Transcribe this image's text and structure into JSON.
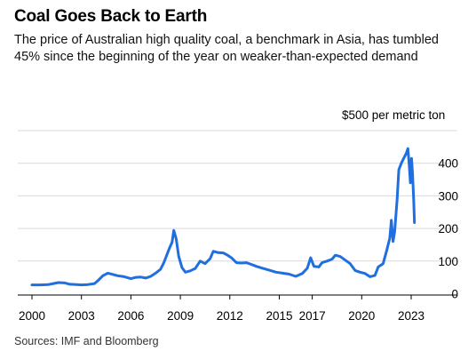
{
  "header": {
    "title": "Coal Goes Back to Earth",
    "subtitle": "The price of Australian high quality coal, a benchmark in Asia, has tumbled 45% since the beginning of the year on weaker-than-expected demand"
  },
  "footer": {
    "source": "Sources: IMF and Bloomberg"
  },
  "chart_data": {
    "type": "line",
    "title": "Coal Goes Back to Earth",
    "y_unit_label": "$500 per metric ton",
    "xlabel": "",
    "ylabel": "",
    "xlim": [
      2000,
      2024.5
    ],
    "ylim": [
      0,
      500
    ],
    "y_ticks": [
      0,
      100,
      200,
      300,
      400
    ],
    "y_tick_labels": [
      "0",
      "100",
      "200",
      "300",
      "400"
    ],
    "x_ticks": [
      2000,
      2003,
      2006,
      2009,
      2012,
      2015,
      2017,
      2020,
      2023
    ],
    "x_tick_labels": [
      "2000",
      "2003",
      "2006",
      "2009",
      "2012",
      "2015",
      "2017",
      "2020",
      "2023"
    ],
    "grid": "horizontal",
    "line_color": "#1f6fe0",
    "series": [
      {
        "points": [
          [
            2000.0,
            27
          ],
          [
            2000.5,
            27
          ],
          [
            2001.0,
            28
          ],
          [
            2001.3,
            31
          ],
          [
            2001.6,
            34
          ],
          [
            2002.0,
            33
          ],
          [
            2002.3,
            29
          ],
          [
            2002.7,
            28
          ],
          [
            2003.0,
            27
          ],
          [
            2003.4,
            28
          ],
          [
            2003.8,
            31
          ],
          [
            2004.0,
            40
          ],
          [
            2004.3,
            55
          ],
          [
            2004.6,
            63
          ],
          [
            2004.9,
            59
          ],
          [
            2005.2,
            55
          ],
          [
            2005.6,
            52
          ],
          [
            2006.0,
            46
          ],
          [
            2006.3,
            50
          ],
          [
            2006.6,
            51
          ],
          [
            2006.9,
            48
          ],
          [
            2007.2,
            53
          ],
          [
            2007.5,
            63
          ],
          [
            2007.8,
            75
          ],
          [
            2008.0,
            95
          ],
          [
            2008.3,
            135
          ],
          [
            2008.5,
            158
          ],
          [
            2008.6,
            194
          ],
          [
            2008.75,
            168
          ],
          [
            2008.9,
            115
          ],
          [
            2009.1,
            80
          ],
          [
            2009.3,
            66
          ],
          [
            2009.6,
            70
          ],
          [
            2009.9,
            77
          ],
          [
            2010.2,
            100
          ],
          [
            2010.5,
            92
          ],
          [
            2010.8,
            107
          ],
          [
            2011.0,
            130
          ],
          [
            2011.3,
            126
          ],
          [
            2011.6,
            125
          ],
          [
            2011.9,
            117
          ],
          [
            2012.1,
            110
          ],
          [
            2012.4,
            95
          ],
          [
            2012.7,
            94
          ],
          [
            2013.0,
            95
          ],
          [
            2013.3,
            90
          ],
          [
            2013.6,
            84
          ],
          [
            2014.0,
            78
          ],
          [
            2014.4,
            72
          ],
          [
            2014.8,
            66
          ],
          [
            2015.2,
            63
          ],
          [
            2015.6,
            60
          ],
          [
            2016.0,
            53
          ],
          [
            2016.4,
            62
          ],
          [
            2016.7,
            78
          ],
          [
            2016.9,
            110
          ],
          [
            2017.1,
            84
          ],
          [
            2017.4,
            82
          ],
          [
            2017.6,
            95
          ],
          [
            2017.9,
            100
          ],
          [
            2018.2,
            106
          ],
          [
            2018.4,
            118
          ],
          [
            2018.7,
            114
          ],
          [
            2019.0,
            103
          ],
          [
            2019.3,
            92
          ],
          [
            2019.6,
            71
          ],
          [
            2019.9,
            66
          ],
          [
            2020.2,
            62
          ],
          [
            2020.5,
            52
          ],
          [
            2020.8,
            56
          ],
          [
            2021.0,
            82
          ],
          [
            2021.3,
            92
          ],
          [
            2021.5,
            130
          ],
          [
            2021.7,
            170
          ],
          [
            2021.8,
            225
          ],
          [
            2021.9,
            160
          ],
          [
            2022.0,
            190
          ],
          [
            2022.15,
            290
          ],
          [
            2022.25,
            380
          ],
          [
            2022.4,
            400
          ],
          [
            2022.55,
            415
          ],
          [
            2022.7,
            430
          ],
          [
            2022.8,
            445
          ],
          [
            2022.88,
            395
          ],
          [
            2022.95,
            340
          ],
          [
            2023.02,
            415
          ],
          [
            2023.08,
            370
          ],
          [
            2023.15,
            290
          ],
          [
            2023.2,
            218
          ]
        ]
      }
    ]
  }
}
